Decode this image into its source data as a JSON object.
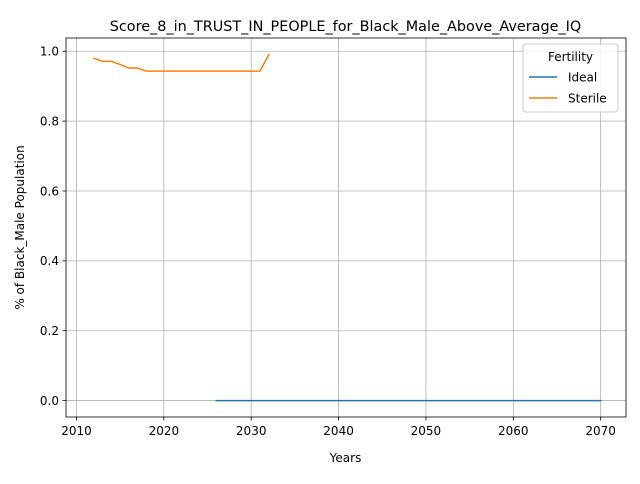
{
  "chart_data": {
    "type": "line",
    "title": "Score_8_in_TRUST_IN_PEOPLE_for_Black_Male_Above_Average_IQ",
    "xlabel": "Years",
    "ylabel": "% of Black_Male Population",
    "xlim": [
      2008.8,
      2072.9
    ],
    "ylim": [
      -0.047,
      1.038
    ],
    "xticks": [
      2010,
      2020,
      2030,
      2040,
      2050,
      2060,
      2070
    ],
    "xtick_labels": [
      "2010",
      "2020",
      "2030",
      "2040",
      "2050",
      "2060",
      "2070"
    ],
    "yticks": [
      0.0,
      0.2,
      0.4,
      0.6,
      0.8,
      1.0
    ],
    "ytick_labels": [
      "0.0",
      "0.2",
      "0.4",
      "0.6",
      "0.8",
      "1.0"
    ],
    "grid": true,
    "legend": {
      "title": "Fertility",
      "placement": "top-right"
    },
    "series": [
      {
        "name": "Ideal",
        "color": "#1f77b4",
        "x": [
          2026,
          2027,
          2028,
          2029,
          2030,
          2031,
          2032,
          2033,
          2034,
          2035,
          2036,
          2037,
          2038,
          2039,
          2040,
          2041,
          2042,
          2043,
          2044,
          2045,
          2046,
          2047,
          2048,
          2049,
          2050,
          2051,
          2052,
          2053,
          2054,
          2055,
          2056,
          2057,
          2058,
          2059,
          2060,
          2061,
          2062,
          2063,
          2064,
          2065,
          2066,
          2067,
          2068,
          2069,
          2070
        ],
        "y": [
          0,
          0,
          0,
          0,
          0,
          0,
          0,
          0,
          0,
          0,
          0,
          0,
          0,
          0,
          0,
          0,
          0,
          0,
          0,
          0,
          0,
          0,
          0,
          0,
          0,
          0,
          0,
          0,
          0,
          0,
          0,
          0,
          0,
          0,
          0,
          0,
          0,
          0,
          0,
          0,
          0,
          0,
          0,
          0,
          0
        ]
      },
      {
        "name": "Sterile",
        "color": "#ff7f0e",
        "x": [
          2012,
          2013,
          2014,
          2015,
          2016,
          2017,
          2018,
          2019,
          2020,
          2021,
          2022,
          2023,
          2024,
          2025,
          2026,
          2027,
          2028,
          2029,
          2030,
          2031,
          2032
        ],
        "y": [
          0.98,
          0.971,
          0.971,
          0.962,
          0.952,
          0.952,
          0.943,
          0.943,
          0.943,
          0.943,
          0.943,
          0.943,
          0.943,
          0.943,
          0.943,
          0.943,
          0.943,
          0.943,
          0.943,
          0.943,
          0.99
        ]
      }
    ]
  }
}
